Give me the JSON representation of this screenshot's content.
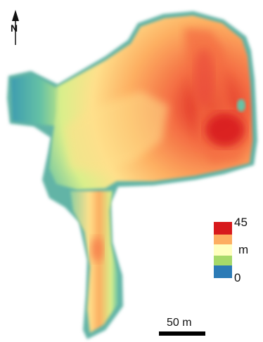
{
  "map": {
    "north_label": "N",
    "legend": {
      "max_label": "45",
      "unit_label": "m",
      "min_label": "0",
      "colors": [
        "#d7191c",
        "#fdae61",
        "#ffffbf",
        "#a6d96a",
        "#2c7bb6"
      ]
    },
    "scale_bar": {
      "label": "50 m"
    }
  }
}
